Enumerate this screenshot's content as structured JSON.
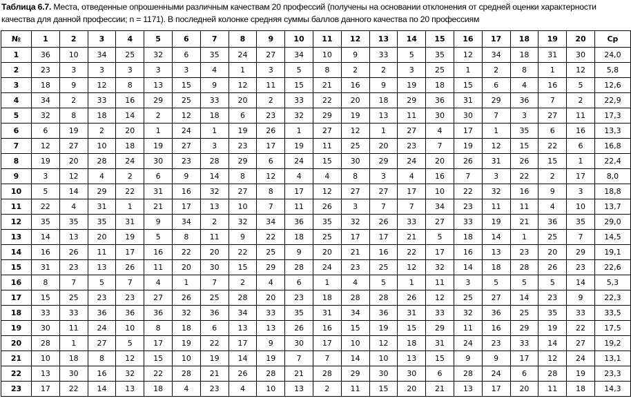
{
  "caption": {
    "label": "Таблица 6.7.",
    "text": " Места, отведенные опрошенными различным качествам 20 профессий (получены на основании отклонения от средней оценки характерности качества для данной профессии; n = 1171). В последней колонке средняя суммы баллов данного качества по 20 профессиям"
  },
  "table": {
    "headers": [
      "№",
      "1",
      "2",
      "3",
      "4",
      "5",
      "6",
      "7",
      "8",
      "9",
      "10",
      "11",
      "12",
      "13",
      "14",
      "15",
      "16",
      "17",
      "18",
      "19",
      "20",
      "Ср"
    ],
    "rows": [
      [
        "1",
        "36",
        "10",
        "34",
        "25",
        "32",
        "6",
        "35",
        "24",
        "27",
        "34",
        "10",
        "9",
        "33",
        "5",
        "35",
        "12",
        "34",
        "18",
        "31",
        "30",
        "24,0"
      ],
      [
        "2",
        "23",
        "3",
        "3",
        "3",
        "3",
        "3",
        "4",
        "1",
        "3",
        "5",
        "8",
        "2",
        "2",
        "3",
        "25",
        "1",
        "2",
        "8",
        "1",
        "12",
        "5,8"
      ],
      [
        "3",
        "18",
        "9",
        "12",
        "8",
        "13",
        "15",
        "9",
        "12",
        "11",
        "15",
        "21",
        "16",
        "9",
        "19",
        "18",
        "15",
        "6",
        "4",
        "16",
        "5",
        "12,6"
      ],
      [
        "4",
        "34",
        "2",
        "33",
        "16",
        "29",
        "25",
        "33",
        "20",
        "2",
        "33",
        "22",
        "20",
        "18",
        "29",
        "36",
        "31",
        "29",
        "36",
        "7",
        "2",
        "22,9"
      ],
      [
        "5",
        "32",
        "8",
        "18",
        "14",
        "2",
        "12",
        "18",
        "6",
        "23",
        "32",
        "29",
        "19",
        "13",
        "11",
        "30",
        "30",
        "7",
        "3",
        "27",
        "11",
        "17,3"
      ],
      [
        "6",
        "6",
        "19",
        "2",
        "20",
        "1",
        "24",
        "1",
        "19",
        "26",
        "1",
        "27",
        "12",
        "1",
        "27",
        "4",
        "17",
        "1",
        "35",
        "6",
        "16",
        "13,3"
      ],
      [
        "7",
        "12",
        "27",
        "10",
        "18",
        "19",
        "27",
        "3",
        "23",
        "17",
        "19",
        "11",
        "25",
        "20",
        "23",
        "7",
        "19",
        "12",
        "15",
        "22",
        "6",
        "16,8"
      ],
      [
        "8",
        "19",
        "20",
        "28",
        "24",
        "30",
        "23",
        "28",
        "29",
        "6",
        "24",
        "15",
        "30",
        "29",
        "24",
        "20",
        "26",
        "31",
        "26",
        "15",
        "1",
        "22,4"
      ],
      [
        "9",
        "3",
        "12",
        "4",
        "2",
        "6",
        "9",
        "14",
        "8",
        "12",
        "4",
        "4",
        "8",
        "3",
        "4",
        "16",
        "7",
        "3",
        "22",
        "2",
        "17",
        "8,0"
      ],
      [
        "10",
        "5",
        "14",
        "29",
        "22",
        "31",
        "16",
        "32",
        "27",
        "8",
        "17",
        "12",
        "27",
        "27",
        "17",
        "10",
        "22",
        "32",
        "16",
        "9",
        "3",
        "18,8"
      ],
      [
        "11",
        "22",
        "4",
        "31",
        "1",
        "21",
        "17",
        "13",
        "10",
        "7",
        "11",
        "26",
        "3",
        "7",
        "7",
        "34",
        "23",
        "11",
        "11",
        "4",
        "10",
        "13,7"
      ],
      [
        "12",
        "35",
        "35",
        "35",
        "31",
        "9",
        "34",
        "2",
        "32",
        "34",
        "36",
        "35",
        "32",
        "26",
        "33",
        "27",
        "33",
        "19",
        "21",
        "36",
        "35",
        "29,0"
      ],
      [
        "13",
        "14",
        "13",
        "20",
        "19",
        "5",
        "8",
        "11",
        "9",
        "22",
        "18",
        "25",
        "17",
        "17",
        "21",
        "5",
        "18",
        "14",
        "1",
        "25",
        "7",
        "14,5"
      ],
      [
        "14",
        "16",
        "26",
        "11",
        "17",
        "16",
        "22",
        "20",
        "22",
        "25",
        "9",
        "20",
        "21",
        "16",
        "22",
        "17",
        "16",
        "13",
        "23",
        "20",
        "29",
        "19,1"
      ],
      [
        "15",
        "31",
        "23",
        "13",
        "26",
        "11",
        "20",
        "30",
        "15",
        "29",
        "28",
        "24",
        "23",
        "25",
        "12",
        "32",
        "14",
        "18",
        "28",
        "26",
        "23",
        "22,6"
      ],
      [
        "16",
        "8",
        "7",
        "5",
        "7",
        "4",
        "1",
        "7",
        "2",
        "4",
        "6",
        "1",
        "4",
        "5",
        "1",
        "11",
        "3",
        "5",
        "5",
        "5",
        "14",
        "5,3"
      ],
      [
        "17",
        "15",
        "25",
        "23",
        "23",
        "27",
        "26",
        "25",
        "28",
        "20",
        "23",
        "18",
        "28",
        "28",
        "26",
        "12",
        "25",
        "27",
        "14",
        "23",
        "9",
        "22,3"
      ],
      [
        "18",
        "33",
        "33",
        "36",
        "36",
        "36",
        "32",
        "36",
        "34",
        "33",
        "35",
        "31",
        "34",
        "36",
        "31",
        "33",
        "32",
        "36",
        "25",
        "35",
        "33",
        "33,5"
      ],
      [
        "19",
        "30",
        "11",
        "24",
        "10",
        "8",
        "18",
        "6",
        "13",
        "13",
        "26",
        "16",
        "15",
        "19",
        "15",
        "29",
        "11",
        "16",
        "29",
        "19",
        "22",
        "17,5"
      ],
      [
        "20",
        "28",
        "1",
        "27",
        "5",
        "17",
        "19",
        "22",
        "17",
        "9",
        "30",
        "17",
        "10",
        "12",
        "18",
        "31",
        "24",
        "23",
        "33",
        "14",
        "27",
        "19,2"
      ],
      [
        "21",
        "10",
        "18",
        "8",
        "12",
        "15",
        "10",
        "19",
        "14",
        "19",
        "7",
        "7",
        "14",
        "10",
        "13",
        "15",
        "9",
        "9",
        "17",
        "12",
        "24",
        "13,1"
      ],
      [
        "22",
        "13",
        "30",
        "16",
        "32",
        "22",
        "28",
        "21",
        "26",
        "28",
        "21",
        "28",
        "29",
        "30",
        "30",
        "6",
        "28",
        "24",
        "6",
        "28",
        "19",
        "23,3"
      ],
      [
        "23",
        "17",
        "22",
        "14",
        "13",
        "18",
        "4",
        "23",
        "4",
        "10",
        "13",
        "2",
        "11",
        "15",
        "20",
        "21",
        "13",
        "17",
        "20",
        "11",
        "18",
        "14,3"
      ]
    ]
  }
}
